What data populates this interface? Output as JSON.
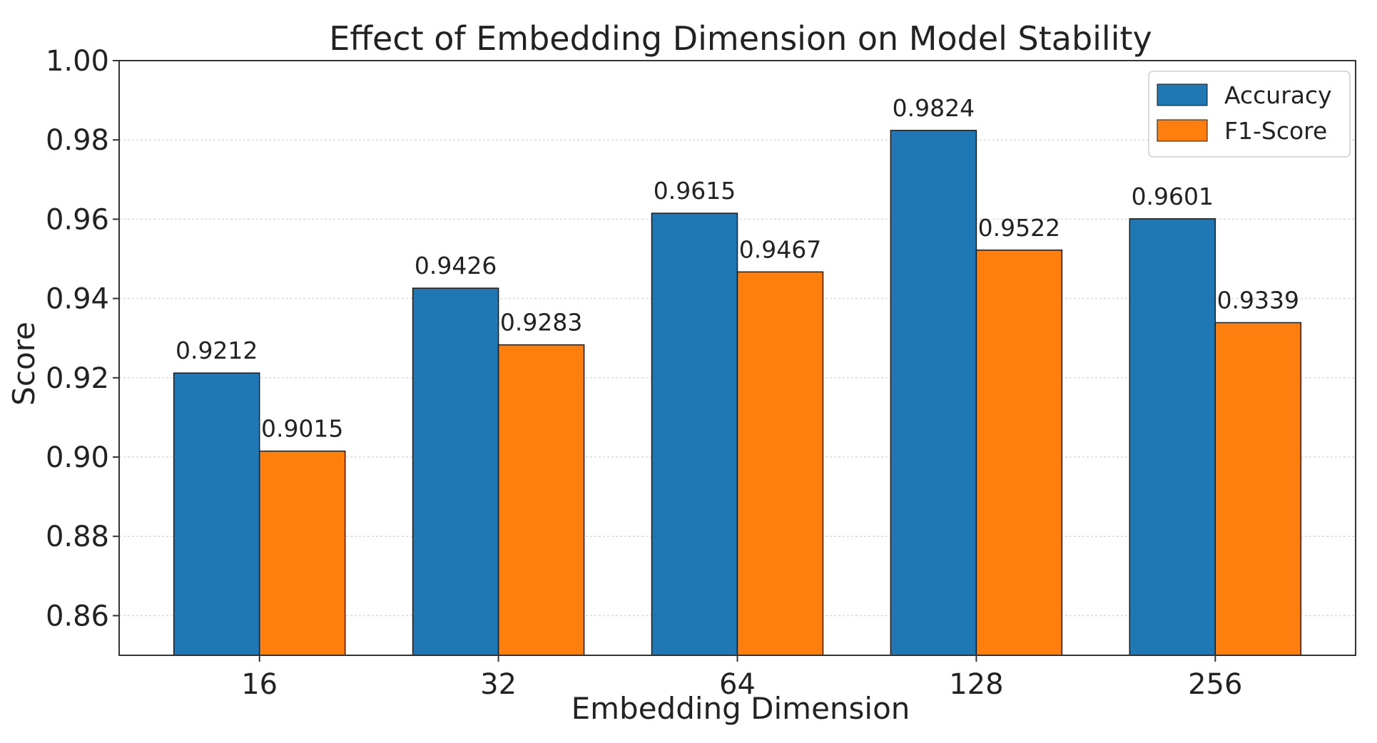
{
  "chart_data": {
    "type": "bar",
    "title": "Effect of Embedding Dimension on Model Stability",
    "xlabel": "Embedding Dimension",
    "ylabel": "Score",
    "categories": [
      "16",
      "32",
      "64",
      "128",
      "256"
    ],
    "series": [
      {
        "name": "Accuracy",
        "color": "#1f77b4",
        "values": [
          0.9212,
          0.9426,
          0.9615,
          0.9824,
          0.9601
        ],
        "labels": [
          "0.9212",
          "0.9426",
          "0.9615",
          "0.9824",
          "0.9601"
        ]
      },
      {
        "name": "F1-Score",
        "color": "#ff7f0e",
        "values": [
          0.9015,
          0.9283,
          0.9467,
          0.9522,
          0.9339
        ],
        "labels": [
          "0.9015",
          "0.9283",
          "0.9467",
          "0.9522",
          "0.9339"
        ]
      }
    ],
    "ylim": [
      0.85,
      1.0
    ],
    "yticks": [
      "0.86",
      "0.88",
      "0.90",
      "0.92",
      "0.94",
      "0.96",
      "0.98",
      "1.00"
    ],
    "grid": true,
    "legend": "top-right"
  }
}
